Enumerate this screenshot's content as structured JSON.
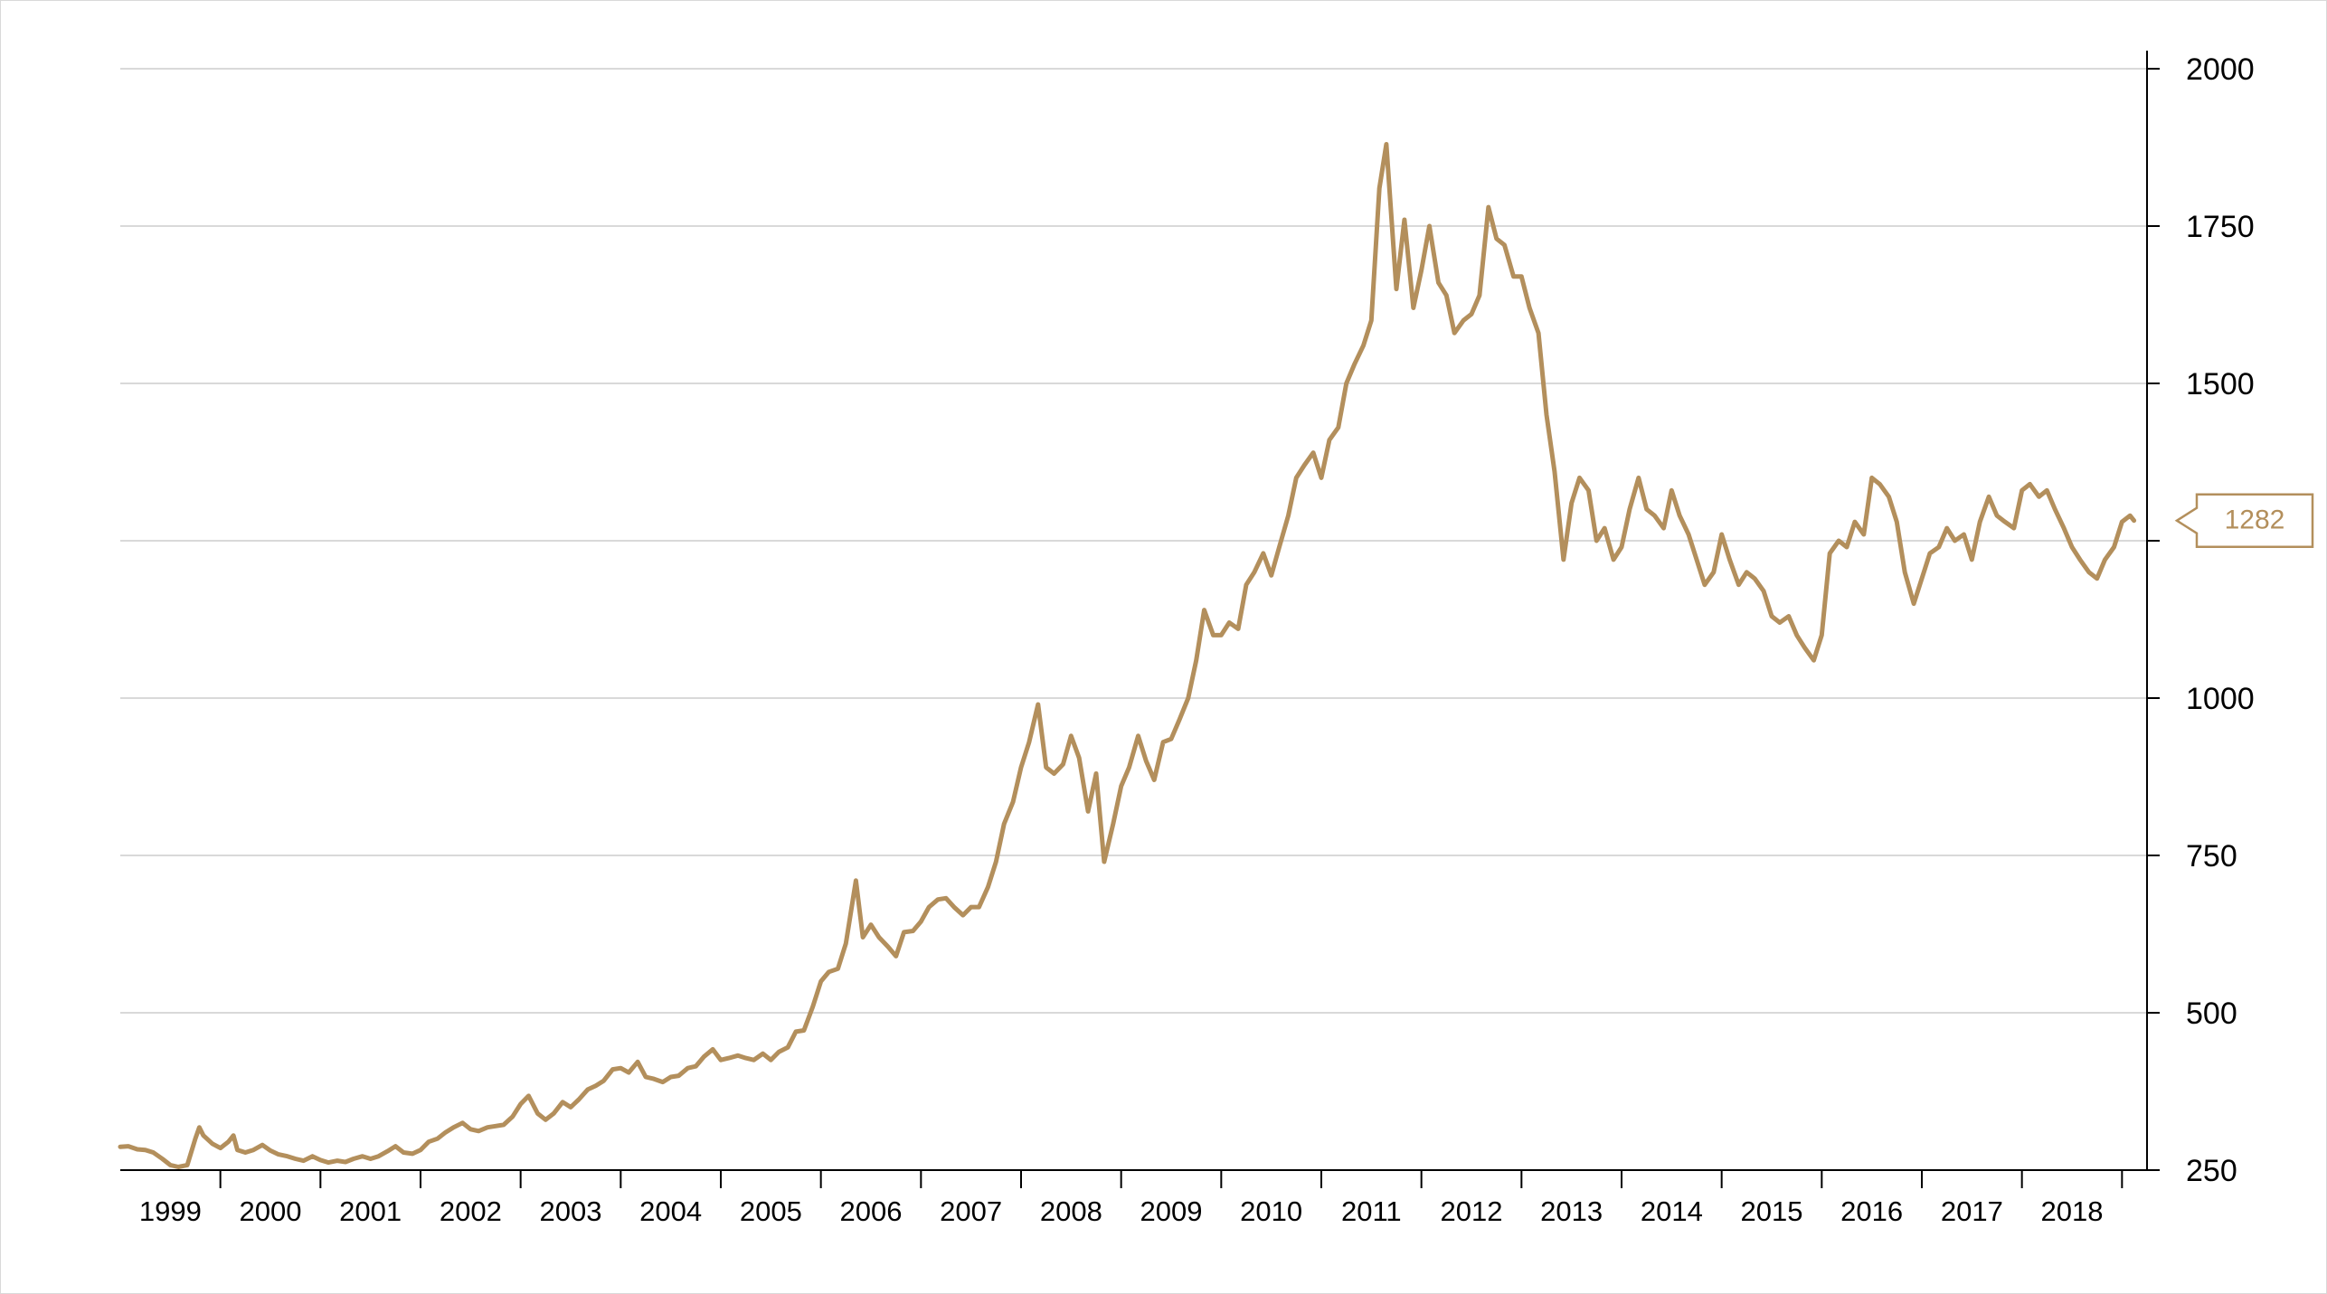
{
  "chart_data": {
    "type": "line",
    "title": "",
    "xlabel": "",
    "ylabel": "",
    "x_tick_labels": [
      "1999",
      "2000",
      "2001",
      "2002",
      "2003",
      "2004",
      "2005",
      "2006",
      "2007",
      "2008",
      "2009",
      "2010",
      "2011",
      "2012",
      "2013",
      "2014",
      "2015",
      "2016",
      "2017",
      "2018"
    ],
    "y_ticks": [
      250,
      500,
      750,
      1000,
      1250,
      1500,
      1750,
      2000
    ],
    "y_tick_labels": [
      "250",
      "500",
      "750",
      "1000",
      "",
      "1500",
      "1750",
      "2000"
    ],
    "xlim": [
      1999.0,
      2019.25
    ],
    "ylim": [
      250,
      2000
    ],
    "grid": "horizontal",
    "y_axis_position": "right",
    "line_color": "#b38f5c",
    "last_value_label": "1282",
    "series": [
      {
        "points": [
          [
            1999.0,
            287
          ],
          [
            1999.08,
            288
          ],
          [
            1999.17,
            283
          ],
          [
            1999.25,
            282
          ],
          [
            1999.33,
            278
          ],
          [
            1999.42,
            268
          ],
          [
            1999.5,
            258
          ],
          [
            1999.58,
            255
          ],
          [
            1999.67,
            258
          ],
          [
            1999.75,
            300
          ],
          [
            1999.79,
            318
          ],
          [
            1999.83,
            305
          ],
          [
            1999.92,
            292
          ],
          [
            2000.0,
            285
          ],
          [
            2000.08,
            295
          ],
          [
            2000.13,
            305
          ],
          [
            2000.17,
            282
          ],
          [
            2000.25,
            278
          ],
          [
            2000.33,
            282
          ],
          [
            2000.42,
            290
          ],
          [
            2000.5,
            281
          ],
          [
            2000.58,
            275
          ],
          [
            2000.67,
            272
          ],
          [
            2000.75,
            268
          ],
          [
            2000.83,
            265
          ],
          [
            2000.92,
            272
          ],
          [
            2001.0,
            266
          ],
          [
            2001.08,
            262
          ],
          [
            2001.17,
            265
          ],
          [
            2001.25,
            263
          ],
          [
            2001.33,
            268
          ],
          [
            2001.42,
            272
          ],
          [
            2001.5,
            268
          ],
          [
            2001.58,
            272
          ],
          [
            2001.67,
            280
          ],
          [
            2001.75,
            288
          ],
          [
            2001.83,
            278
          ],
          [
            2001.92,
            276
          ],
          [
            2002.0,
            282
          ],
          [
            2002.08,
            295
          ],
          [
            2002.17,
            300
          ],
          [
            2002.25,
            310
          ],
          [
            2002.33,
            318
          ],
          [
            2002.42,
            325
          ],
          [
            2002.5,
            315
          ],
          [
            2002.58,
            312
          ],
          [
            2002.67,
            318
          ],
          [
            2002.75,
            320
          ],
          [
            2002.83,
            322
          ],
          [
            2002.92,
            335
          ],
          [
            2003.0,
            355
          ],
          [
            2003.08,
            368
          ],
          [
            2003.17,
            340
          ],
          [
            2003.25,
            330
          ],
          [
            2003.33,
            340
          ],
          [
            2003.42,
            358
          ],
          [
            2003.5,
            350
          ],
          [
            2003.58,
            362
          ],
          [
            2003.67,
            378
          ],
          [
            2003.75,
            384
          ],
          [
            2003.83,
            392
          ],
          [
            2003.92,
            410
          ],
          [
            2004.0,
            412
          ],
          [
            2004.08,
            405
          ],
          [
            2004.17,
            422
          ],
          [
            2004.25,
            398
          ],
          [
            2004.33,
            395
          ],
          [
            2004.42,
            390
          ],
          [
            2004.5,
            398
          ],
          [
            2004.58,
            400
          ],
          [
            2004.67,
            412
          ],
          [
            2004.75,
            415
          ],
          [
            2004.83,
            430
          ],
          [
            2004.92,
            442
          ],
          [
            2005.0,
            425
          ],
          [
            2005.08,
            428
          ],
          [
            2005.17,
            432
          ],
          [
            2005.25,
            428
          ],
          [
            2005.33,
            425
          ],
          [
            2005.42,
            435
          ],
          [
            2005.5,
            425
          ],
          [
            2005.58,
            438
          ],
          [
            2005.67,
            445
          ],
          [
            2005.75,
            470
          ],
          [
            2005.83,
            472
          ],
          [
            2005.92,
            510
          ],
          [
            2006.0,
            550
          ],
          [
            2006.08,
            565
          ],
          [
            2006.17,
            570
          ],
          [
            2006.25,
            610
          ],
          [
            2006.35,
            710
          ],
          [
            2006.42,
            620
          ],
          [
            2006.5,
            640
          ],
          [
            2006.58,
            620
          ],
          [
            2006.67,
            605
          ],
          [
            2006.75,
            590
          ],
          [
            2006.83,
            628
          ],
          [
            2006.92,
            630
          ],
          [
            2007.0,
            645
          ],
          [
            2007.08,
            668
          ],
          [
            2007.17,
            680
          ],
          [
            2007.25,
            682
          ],
          [
            2007.33,
            668
          ],
          [
            2007.42,
            655
          ],
          [
            2007.5,
            668
          ],
          [
            2007.58,
            668
          ],
          [
            2007.67,
            700
          ],
          [
            2007.75,
            740
          ],
          [
            2007.83,
            800
          ],
          [
            2007.92,
            835
          ],
          [
            2008.0,
            890
          ],
          [
            2008.08,
            930
          ],
          [
            2008.17,
            990
          ],
          [
            2008.25,
            890
          ],
          [
            2008.33,
            880
          ],
          [
            2008.42,
            895
          ],
          [
            2008.5,
            940
          ],
          [
            2008.58,
            905
          ],
          [
            2008.67,
            820
          ],
          [
            2008.75,
            880
          ],
          [
            2008.83,
            740
          ],
          [
            2008.92,
            800
          ],
          [
            2009.0,
            860
          ],
          [
            2009.08,
            890
          ],
          [
            2009.17,
            940
          ],
          [
            2009.25,
            900
          ],
          [
            2009.33,
            870
          ],
          [
            2009.42,
            930
          ],
          [
            2009.5,
            935
          ],
          [
            2009.58,
            965
          ],
          [
            2009.67,
            1000
          ],
          [
            2009.75,
            1060
          ],
          [
            2009.83,
            1140
          ],
          [
            2009.92,
            1100
          ],
          [
            2010.0,
            1100
          ],
          [
            2010.08,
            1120
          ],
          [
            2010.17,
            1110
          ],
          [
            2010.25,
            1180
          ],
          [
            2010.33,
            1200
          ],
          [
            2010.42,
            1230
          ],
          [
            2010.5,
            1195
          ],
          [
            2010.58,
            1240
          ],
          [
            2010.67,
            1290
          ],
          [
            2010.75,
            1350
          ],
          [
            2010.83,
            1370
          ],
          [
            2010.92,
            1390
          ],
          [
            2011.0,
            1350
          ],
          [
            2011.08,
            1410
          ],
          [
            2011.17,
            1430
          ],
          [
            2011.25,
            1500
          ],
          [
            2011.33,
            1530
          ],
          [
            2011.42,
            1560
          ],
          [
            2011.5,
            1600
          ],
          [
            2011.58,
            1810
          ],
          [
            2011.65,
            1880
          ],
          [
            2011.75,
            1650
          ],
          [
            2011.83,
            1760
          ],
          [
            2011.92,
            1620
          ],
          [
            2012.0,
            1680
          ],
          [
            2012.08,
            1750
          ],
          [
            2012.17,
            1660
          ],
          [
            2012.25,
            1640
          ],
          [
            2012.33,
            1580
          ],
          [
            2012.42,
            1600
          ],
          [
            2012.5,
            1610
          ],
          [
            2012.58,
            1640
          ],
          [
            2012.67,
            1780
          ],
          [
            2012.75,
            1730
          ],
          [
            2012.83,
            1720
          ],
          [
            2012.92,
            1670
          ],
          [
            2013.0,
            1670
          ],
          [
            2013.08,
            1620
          ],
          [
            2013.17,
            1580
          ],
          [
            2013.25,
            1450
          ],
          [
            2013.33,
            1360
          ],
          [
            2013.42,
            1220
          ],
          [
            2013.5,
            1310
          ],
          [
            2013.58,
            1350
          ],
          [
            2013.67,
            1330
          ],
          [
            2013.75,
            1250
          ],
          [
            2013.83,
            1270
          ],
          [
            2013.92,
            1220
          ],
          [
            2014.0,
            1240
          ],
          [
            2014.08,
            1300
          ],
          [
            2014.17,
            1350
          ],
          [
            2014.25,
            1300
          ],
          [
            2014.33,
            1290
          ],
          [
            2014.42,
            1270
          ],
          [
            2014.5,
            1330
          ],
          [
            2014.58,
            1290
          ],
          [
            2014.67,
            1260
          ],
          [
            2014.75,
            1220
          ],
          [
            2014.83,
            1180
          ],
          [
            2014.92,
            1200
          ],
          [
            2015.0,
            1260
          ],
          [
            2015.08,
            1220
          ],
          [
            2015.17,
            1180
          ],
          [
            2015.25,
            1200
          ],
          [
            2015.33,
            1190
          ],
          [
            2015.42,
            1170
          ],
          [
            2015.5,
            1130
          ],
          [
            2015.58,
            1120
          ],
          [
            2015.67,
            1130
          ],
          [
            2015.75,
            1100
          ],
          [
            2015.83,
            1080
          ],
          [
            2015.92,
            1060
          ],
          [
            2016.0,
            1100
          ],
          [
            2016.08,
            1230
          ],
          [
            2016.17,
            1250
          ],
          [
            2016.25,
            1240
          ],
          [
            2016.33,
            1280
          ],
          [
            2016.42,
            1260
          ],
          [
            2016.5,
            1350
          ],
          [
            2016.58,
            1340
          ],
          [
            2016.67,
            1320
          ],
          [
            2016.75,
            1280
          ],
          [
            2016.83,
            1200
          ],
          [
            2016.92,
            1150
          ],
          [
            2017.0,
            1190
          ],
          [
            2017.08,
            1230
          ],
          [
            2017.17,
            1240
          ],
          [
            2017.25,
            1270
          ],
          [
            2017.33,
            1250
          ],
          [
            2017.42,
            1260
          ],
          [
            2017.5,
            1220
          ],
          [
            2017.58,
            1280
          ],
          [
            2017.67,
            1320
          ],
          [
            2017.75,
            1290
          ],
          [
            2017.83,
            1280
          ],
          [
            2017.92,
            1270
          ],
          [
            2018.0,
            1330
          ],
          [
            2018.08,
            1340
          ],
          [
            2018.17,
            1320
          ],
          [
            2018.25,
            1330
          ],
          [
            2018.33,
            1300
          ],
          [
            2018.42,
            1270
          ],
          [
            2018.5,
            1240
          ],
          [
            2018.58,
            1220
          ],
          [
            2018.67,
            1200
          ],
          [
            2018.75,
            1190
          ],
          [
            2018.83,
            1220
          ],
          [
            2018.92,
            1240
          ],
          [
            2019.0,
            1280
          ],
          [
            2019.08,
            1290
          ],
          [
            2019.12,
            1282
          ]
        ]
      }
    ]
  }
}
